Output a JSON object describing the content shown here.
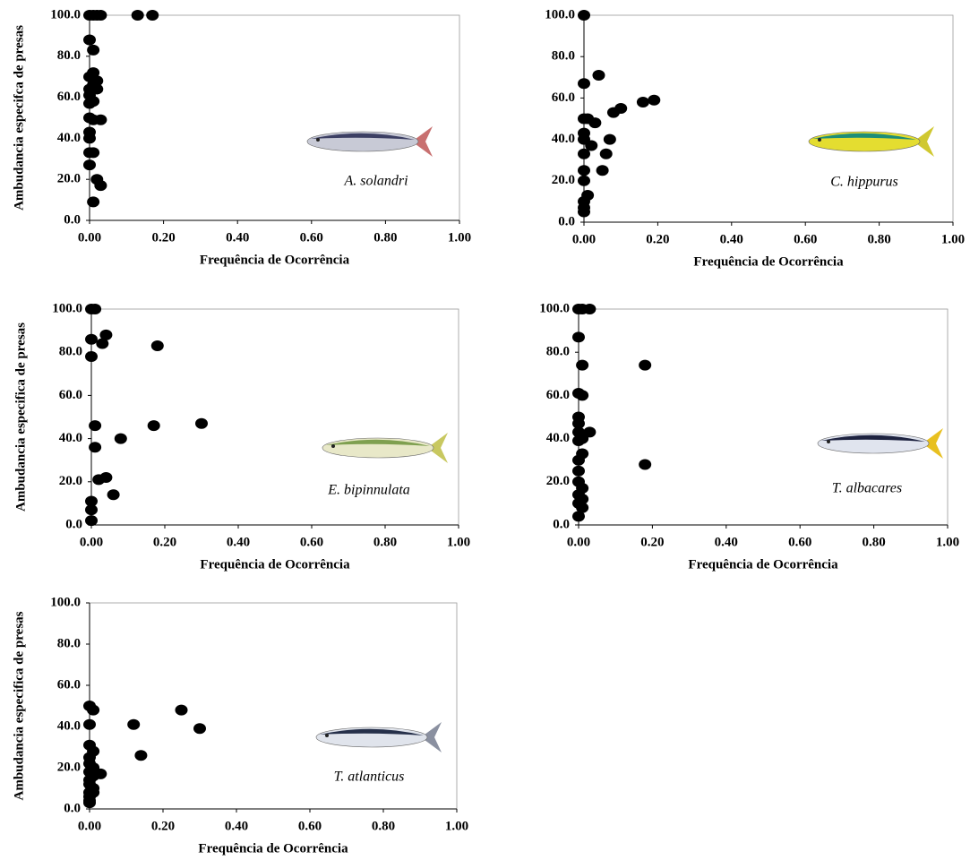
{
  "chart_data": [
    {
      "type": "scatter",
      "x_label": "Frequência de Ocorrência",
      "y_label": "Ambudancia especifca de presas",
      "annotation": "A. solandri",
      "color": "#000000",
      "x": [
        0.0,
        0.01,
        0.02,
        0.03,
        0.13,
        0.17,
        0.0,
        0.01,
        0.01,
        0.0,
        0.02,
        0.01,
        0.0,
        0.02,
        0.0,
        0.01,
        0.0,
        0.0,
        0.01,
        0.03,
        0.0,
        0.0,
        0.01,
        0.0,
        0.0,
        0.02,
        0.03,
        0.01
      ],
      "y": [
        100,
        100,
        100,
        100,
        100,
        100,
        88,
        83,
        72,
        70,
        68,
        66,
        64,
        64,
        61,
        58,
        57,
        50,
        49,
        49,
        43,
        40,
        33,
        33,
        27,
        20,
        17,
        9
      ],
      "xlim": [
        0,
        1
      ],
      "ylim": [
        0,
        100
      ],
      "xticks": [
        {
          "value": 0,
          "label": "0.00"
        },
        {
          "value": 0.2,
          "label": "0.20"
        },
        {
          "value": 0.4,
          "label": "0.40"
        },
        {
          "value": 0.6,
          "label": "0.60"
        },
        {
          "value": 0.8,
          "label": "0.80"
        },
        {
          "value": 1,
          "label": "1.00"
        }
      ],
      "yticks": [
        {
          "value": 0,
          "label": "0.0"
        },
        {
          "value": 20,
          "label": "20.0"
        },
        {
          "value": 40,
          "label": "40.0"
        },
        {
          "value": 60,
          "label": "60.0"
        },
        {
          "value": 80,
          "label": "80.0"
        },
        {
          "value": 100,
          "label": "100.0"
        }
      ]
    },
    {
      "type": "scatter",
      "x_label": "Frequência de Ocorrência",
      "annotation": "C. hippurus",
      "color": "#000000",
      "x": [
        0.0,
        0.0,
        0.04,
        0.0,
        0.01,
        0.03,
        0.0,
        0.0,
        0.02,
        0.0,
        0.08,
        0.1,
        0.16,
        0.19,
        0.07,
        0.06,
        0.05,
        0.0,
        0.0,
        0.01,
        0.0,
        0.0,
        0.0
      ],
      "y": [
        100,
        67,
        71,
        50,
        50,
        48,
        43,
        40,
        37,
        33,
        53,
        55,
        58,
        59,
        40,
        33,
        25,
        25,
        20,
        13,
        10,
        7,
        5
      ],
      "xlim": [
        0,
        1
      ],
      "ylim": [
        0,
        100
      ],
      "xticks": [
        {
          "value": 0,
          "label": "0.00"
        },
        {
          "value": 0.2,
          "label": "0.20"
        },
        {
          "value": 0.4,
          "label": "0.40"
        },
        {
          "value": 0.6,
          "label": "0.60"
        },
        {
          "value": 0.8,
          "label": "0.80"
        },
        {
          "value": 1,
          "label": "1.00"
        }
      ],
      "yticks": [
        {
          "value": 0,
          "label": "0.0"
        },
        {
          "value": 20,
          "label": "20.0"
        },
        {
          "value": 40,
          "label": "40.0"
        },
        {
          "value": 60,
          "label": "60.0"
        },
        {
          "value": 80,
          "label": "80.0"
        },
        {
          "value": 100,
          "label": "100.0"
        }
      ]
    },
    {
      "type": "scatter",
      "x_label": "Frequência de Ocorrência",
      "y_label": "Ambudancia especifica de presas",
      "annotation": "E. bipinnulata",
      "color": "#000000",
      "x": [
        0.0,
        0.01,
        0.0,
        0.04,
        0.03,
        0.18,
        0.0,
        0.01,
        0.17,
        0.3,
        0.08,
        0.01,
        0.02,
        0.04,
        0.06,
        0.0,
        0.0,
        0.0
      ],
      "y": [
        100,
        100,
        86,
        88,
        84,
        83,
        78,
        46,
        46,
        47,
        40,
        36,
        21,
        22,
        14,
        11,
        7,
        2
      ],
      "xlim": [
        0,
        1
      ],
      "ylim": [
        0,
        100
      ],
      "xticks": [
        {
          "value": 0,
          "label": "0.00"
        },
        {
          "value": 0.2,
          "label": "0.20"
        },
        {
          "value": 0.4,
          "label": "0.40"
        },
        {
          "value": 0.6,
          "label": "0.60"
        },
        {
          "value": 0.8,
          "label": "0.80"
        },
        {
          "value": 1,
          "label": "1.00"
        }
      ],
      "yticks": [
        {
          "value": 0,
          "label": "0.0"
        },
        {
          "value": 20,
          "label": "20.0"
        },
        {
          "value": 40,
          "label": "40.0"
        },
        {
          "value": 60,
          "label": "60.0"
        },
        {
          "value": 80,
          "label": "80.0"
        },
        {
          "value": 100,
          "label": "100.0"
        }
      ]
    },
    {
      "type": "scatter",
      "x_label": "Frequência de Ocorrência",
      "annotation": "T. albacares",
      "color": "#000000",
      "x": [
        0.0,
        0.01,
        0.03,
        0.0,
        0.01,
        0.18,
        0.0,
        0.01,
        0.0,
        0.0,
        0.03,
        0.0,
        0.01,
        0.0,
        0.01,
        0.0,
        0.0,
        0.0,
        0.01,
        0.0,
        0.01,
        0.0,
        0.01,
        0.0,
        0.18
      ],
      "y": [
        100,
        100,
        100,
        87,
        74,
        74,
        61,
        60,
        50,
        47,
        43,
        43,
        40,
        39,
        33,
        30,
        25,
        20,
        17,
        14,
        12,
        10,
        8,
        4,
        28
      ],
      "xlim": [
        0,
        1
      ],
      "ylim": [
        0,
        100
      ],
      "xticks": [
        {
          "value": 0,
          "label": "0.00"
        },
        {
          "value": 0.2,
          "label": "0.20"
        },
        {
          "value": 0.4,
          "label": "0.40"
        },
        {
          "value": 0.6,
          "label": "0.60"
        },
        {
          "value": 0.8,
          "label": "0.80"
        },
        {
          "value": 1,
          "label": "1.00"
        }
      ],
      "yticks": [
        {
          "value": 0,
          "label": "0.0"
        },
        {
          "value": 20,
          "label": "20.0"
        },
        {
          "value": 40,
          "label": "40.0"
        },
        {
          "value": 60,
          "label": "60.0"
        },
        {
          "value": 80,
          "label": "80.0"
        },
        {
          "value": 100,
          "label": "100.0"
        }
      ]
    },
    {
      "type": "scatter",
      "x_label": "Frequência de Ocorrência",
      "y_label": "Ambudancia especifica de presas",
      "annotation": "T. atlanticus",
      "color": "#000000",
      "x": [
        0.0,
        0.01,
        0.25,
        0.12,
        0.3,
        0.0,
        0.14,
        0.0,
        0.01,
        0.0,
        0.0,
        0.01,
        0.0,
        0.03,
        0.01,
        0.0,
        0.0,
        0.01,
        0.0,
        0.01,
        0.0,
        0.0,
        0.0
      ],
      "y": [
        50,
        48,
        48,
        41,
        39,
        41,
        26,
        31,
        28,
        25,
        22,
        20,
        18,
        17,
        16,
        14,
        12,
        10,
        8,
        8,
        6,
        4,
        3
      ],
      "xlim": [
        0,
        1
      ],
      "ylim": [
        0,
        100
      ],
      "xticks": [
        {
          "value": 0,
          "label": "0.00"
        },
        {
          "value": 0.2,
          "label": "0.20"
        },
        {
          "value": 0.4,
          "label": "0.40"
        },
        {
          "value": 0.6,
          "label": "0.60"
        },
        {
          "value": 0.8,
          "label": "0.80"
        },
        {
          "value": 1,
          "label": "1.00"
        }
      ],
      "yticks": [
        {
          "value": 0,
          "label": "0.0"
        },
        {
          "value": 20,
          "label": "20.0"
        },
        {
          "value": 40,
          "label": "40.0"
        },
        {
          "value": 60,
          "label": "60.0"
        },
        {
          "value": 80,
          "label": "80.0"
        },
        {
          "value": 100,
          "label": "100.0"
        }
      ]
    }
  ]
}
